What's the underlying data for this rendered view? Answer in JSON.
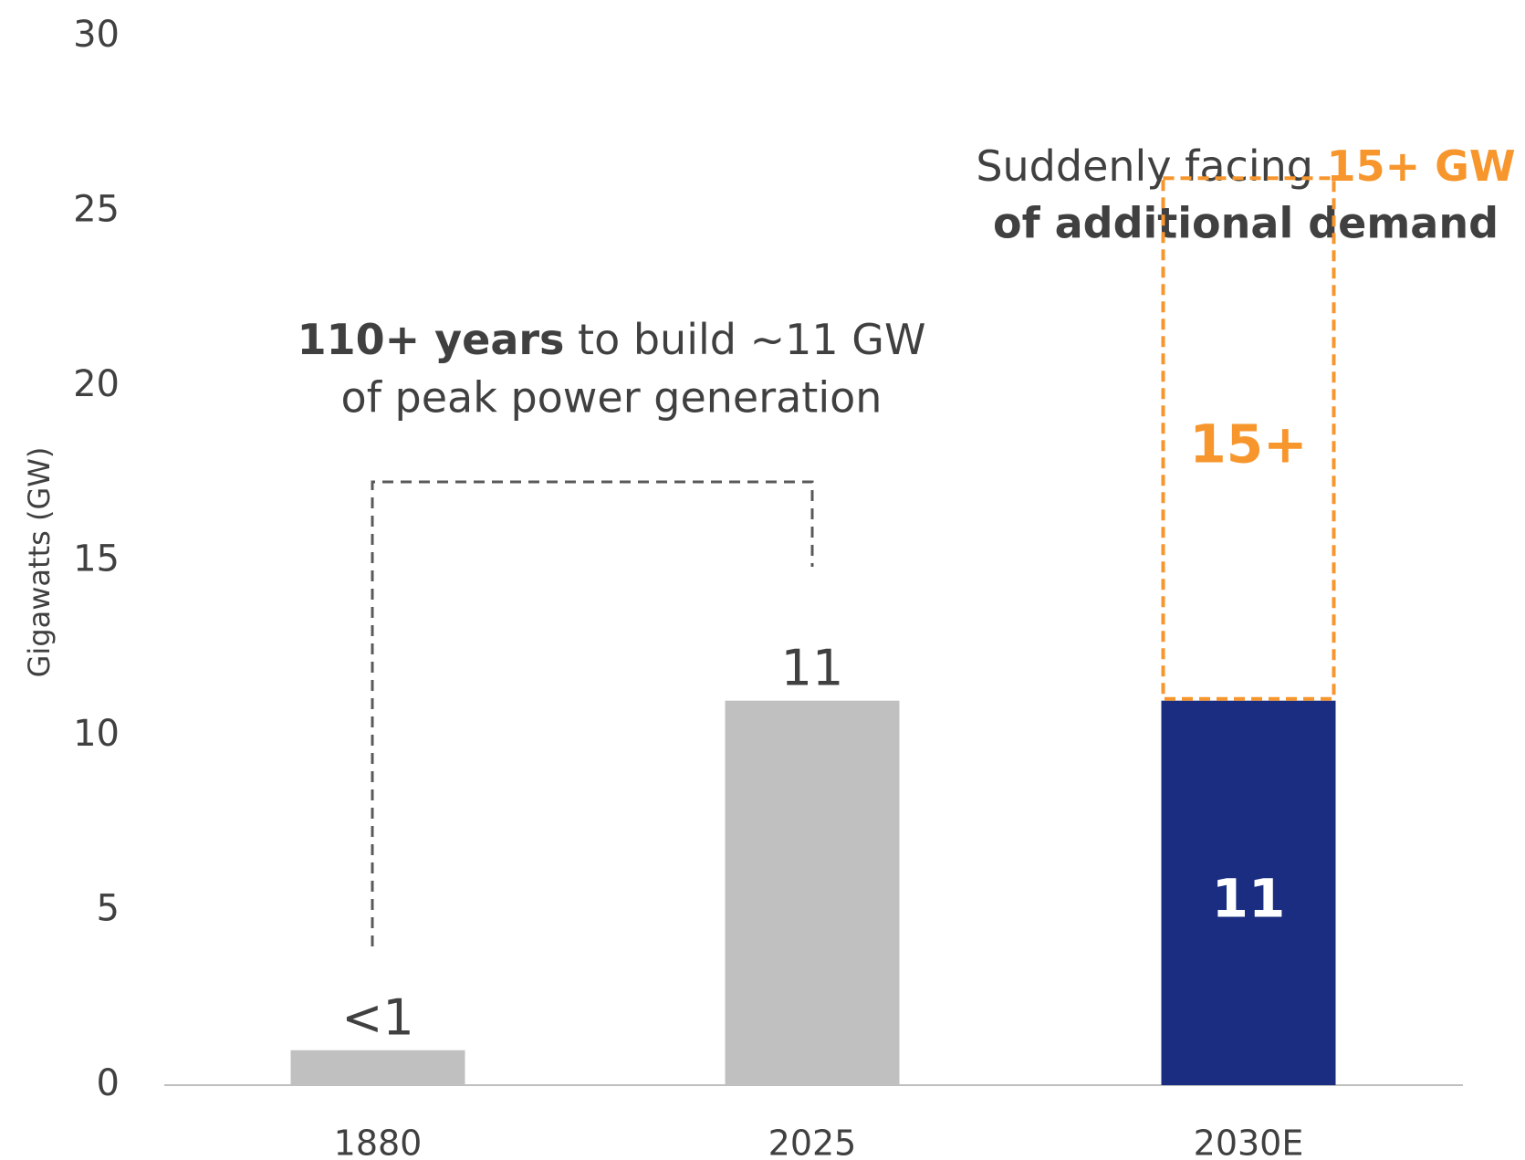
{
  "chart_data": {
    "type": "stacked_bar",
    "y_axis_label": "Gigawatts (GW)",
    "categories": [
      "1880",
      "2025",
      "2030E"
    ],
    "series": [
      {
        "colors": [
          "#c0c0c0",
          "#c0c0c0",
          "#1a2d80"
        ],
        "values": [
          1,
          11,
          11
        ],
        "value_labels": [
          "<1",
          "11",
          "11"
        ]
      },
      {
        "color": "#f7962d",
        "style": "dashed",
        "values": [
          null,
          null,
          15
        ],
        "value_labels": [
          null,
          null,
          "15+"
        ]
      }
    ],
    "ylim": [
      0,
      30
    ],
    "yticks": [
      0,
      5,
      10,
      15,
      20,
      25,
      30
    ],
    "grid": false,
    "annotations": [
      {
        "bold": "110+ years",
        "text": " to build ~11 GW",
        "line2": "of peak power generation"
      },
      {
        "text": "Suddenly facing ",
        "highlight": "15+ GW",
        "line2": "of additional demand"
      }
    ]
  }
}
